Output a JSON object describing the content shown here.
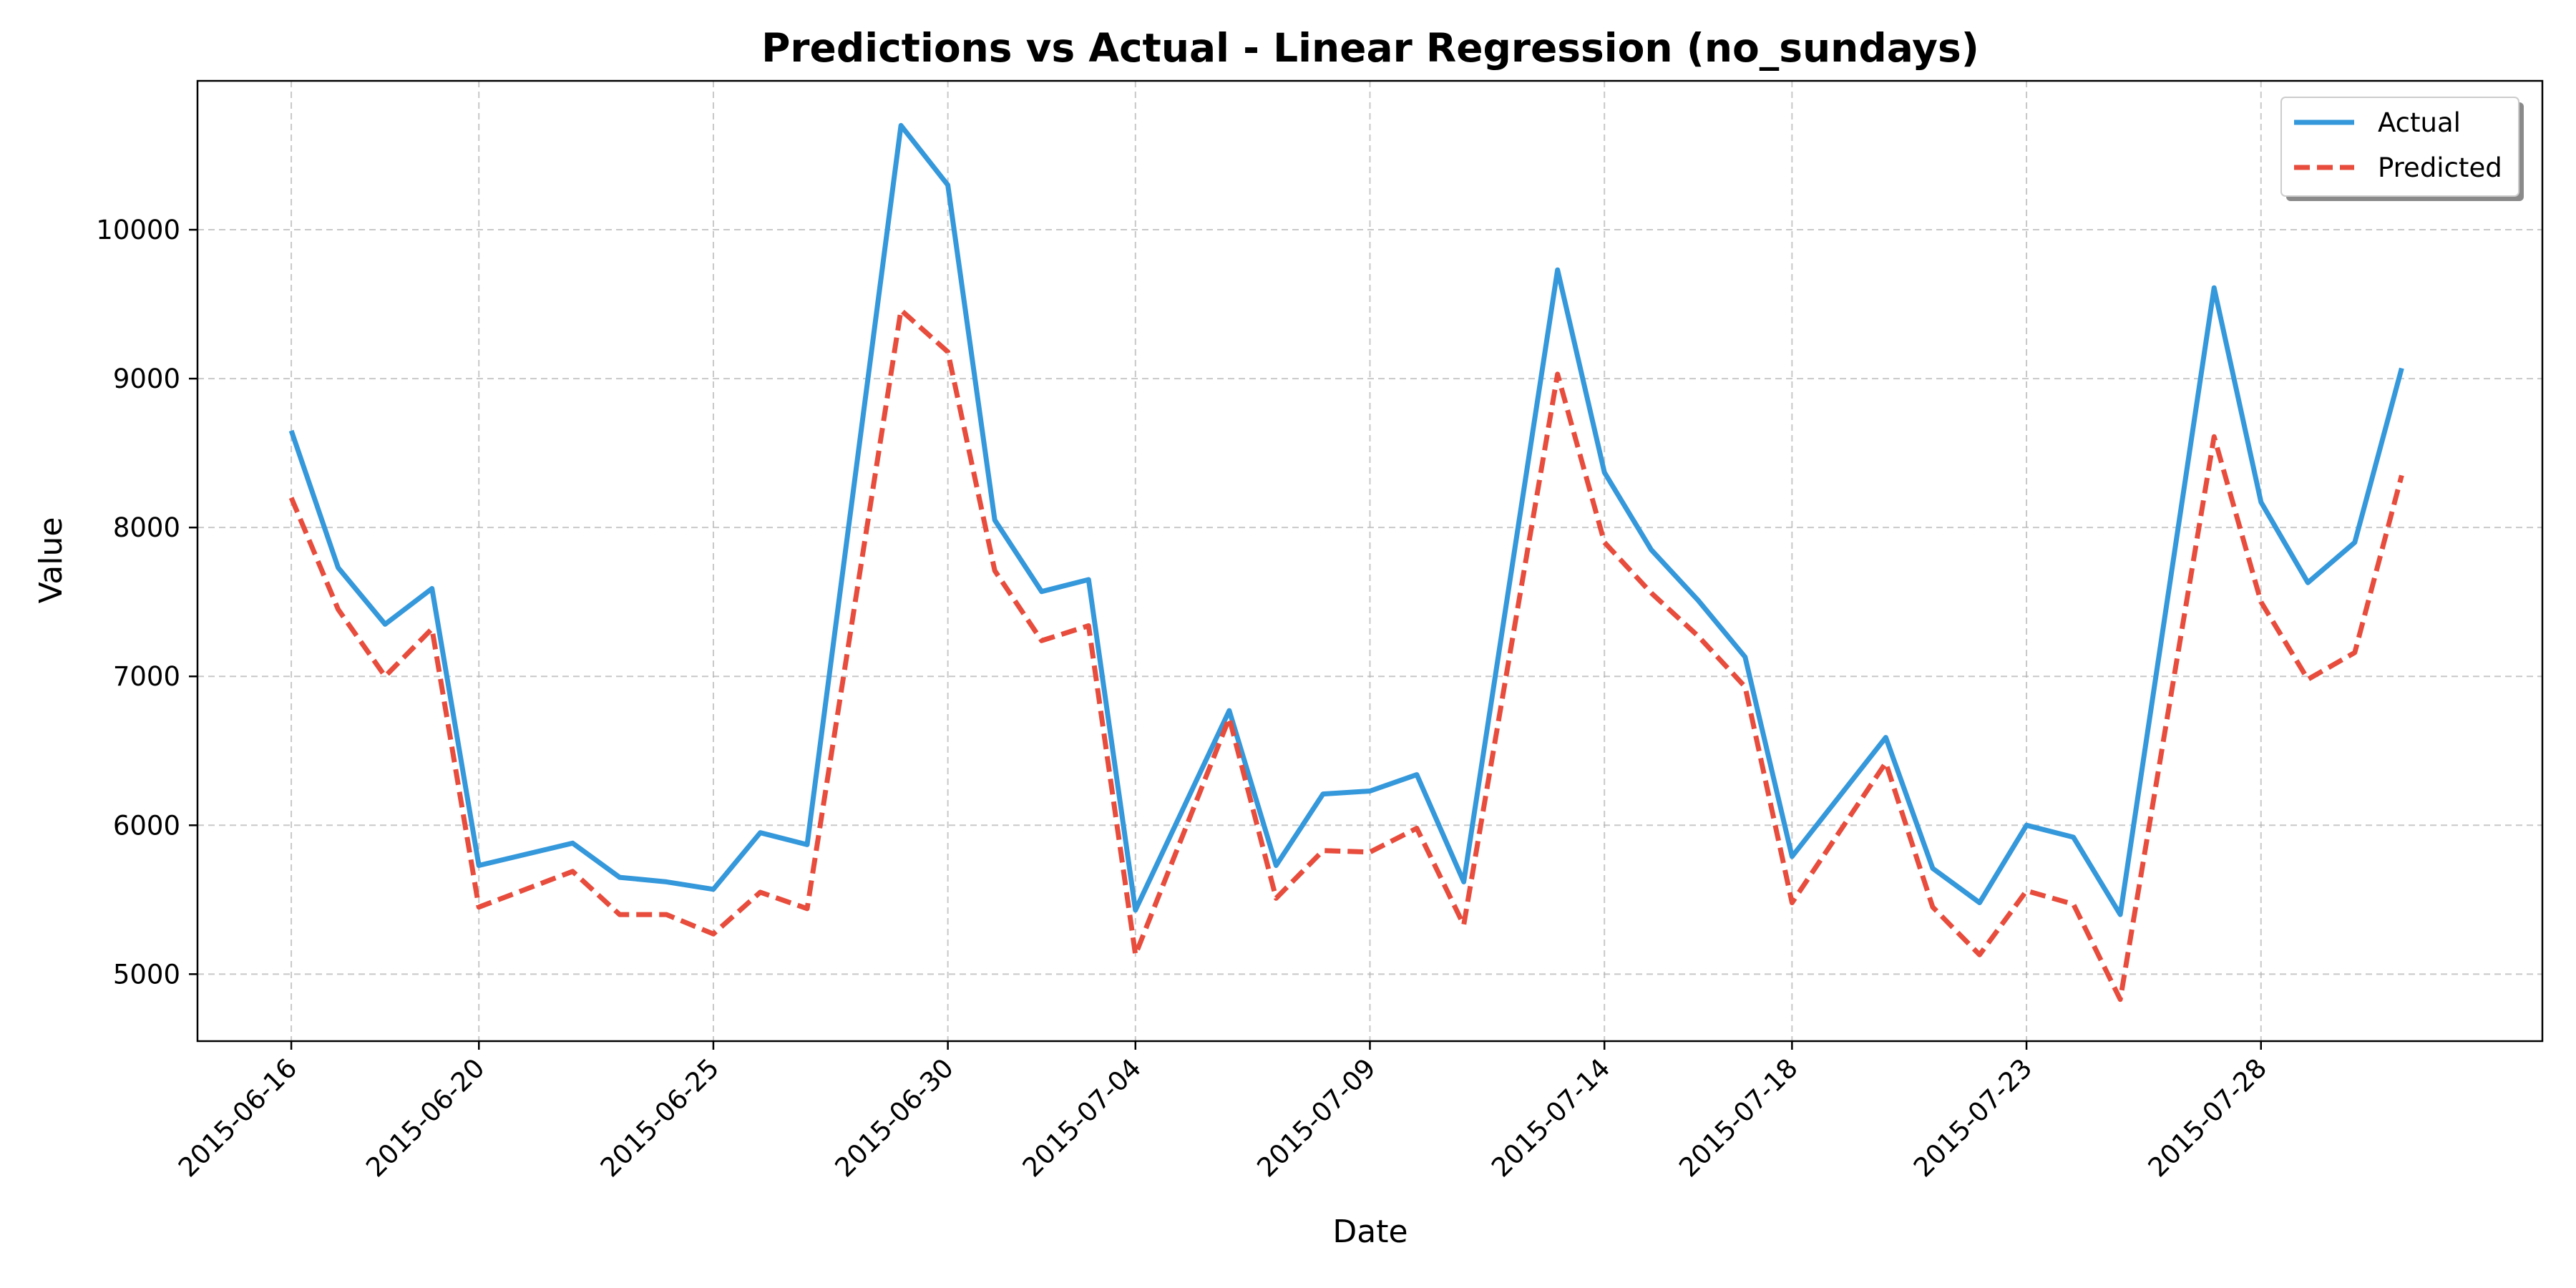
{
  "chart_data": {
    "type": "line",
    "title": "Predictions vs Actual - Linear Regression (no_sundays)",
    "xlabel": "Date",
    "ylabel": "Value",
    "x_ticks": [
      "2015-06-16",
      "2015-06-20",
      "2015-06-25",
      "2015-06-30",
      "2015-07-04",
      "2015-07-09",
      "2015-07-14",
      "2015-07-18",
      "2015-07-23",
      "2015-07-28"
    ],
    "y_ticks": [
      5000,
      6000,
      7000,
      8000,
      9000,
      10000
    ],
    "xlim": [
      "2015-06-14",
      "2015-08-03"
    ],
    "ylim": [
      4550,
      11000
    ],
    "grid": true,
    "legend_position": "top-right",
    "x": [
      "2015-06-16",
      "2015-06-17",
      "2015-06-18",
      "2015-06-19",
      "2015-06-20",
      "2015-06-22",
      "2015-06-23",
      "2015-06-24",
      "2015-06-25",
      "2015-06-26",
      "2015-06-27",
      "2015-06-29",
      "2015-06-30",
      "2015-07-01",
      "2015-07-02",
      "2015-07-03",
      "2015-07-04",
      "2015-07-06",
      "2015-07-07",
      "2015-07-08",
      "2015-07-09",
      "2015-07-10",
      "2015-07-11",
      "2015-07-13",
      "2015-07-14",
      "2015-07-15",
      "2015-07-16",
      "2015-07-17",
      "2015-07-18",
      "2015-07-20",
      "2015-07-21",
      "2015-07-22",
      "2015-07-23",
      "2015-07-24",
      "2015-07-25",
      "2015-07-27",
      "2015-07-28",
      "2015-07-29",
      "2015-07-30",
      "2015-07-31"
    ],
    "series": [
      {
        "name": "Actual",
        "color": "#3498db",
        "dash": "solid",
        "values": [
          8650,
          7730,
          7350,
          7590,
          5730,
          5880,
          5650,
          5620,
          5570,
          5950,
          5870,
          10700,
          10300,
          8050,
          7570,
          7650,
          5430,
          6770,
          5730,
          6210,
          6230,
          6340,
          5620,
          9730,
          8370,
          7850,
          7510,
          7130,
          5790,
          6590,
          5710,
          5480,
          6000,
          5920,
          5400,
          9610,
          8170,
          7630,
          7900,
          9070
        ]
      },
      {
        "name": "Predicted",
        "color": "#e74c3c",
        "dash": "dashed",
        "values": [
          8200,
          7450,
          7000,
          7320,
          5450,
          5690,
          5400,
          5400,
          5270,
          5550,
          5440,
          9460,
          9180,
          7710,
          7240,
          7340,
          5130,
          6720,
          5510,
          5830,
          5820,
          5980,
          5330,
          9030,
          7900,
          7560,
          7270,
          6930,
          5480,
          6420,
          5450,
          5130,
          5560,
          5470,
          4830,
          8610,
          7500,
          6980,
          7160,
          8350
        ]
      }
    ]
  }
}
